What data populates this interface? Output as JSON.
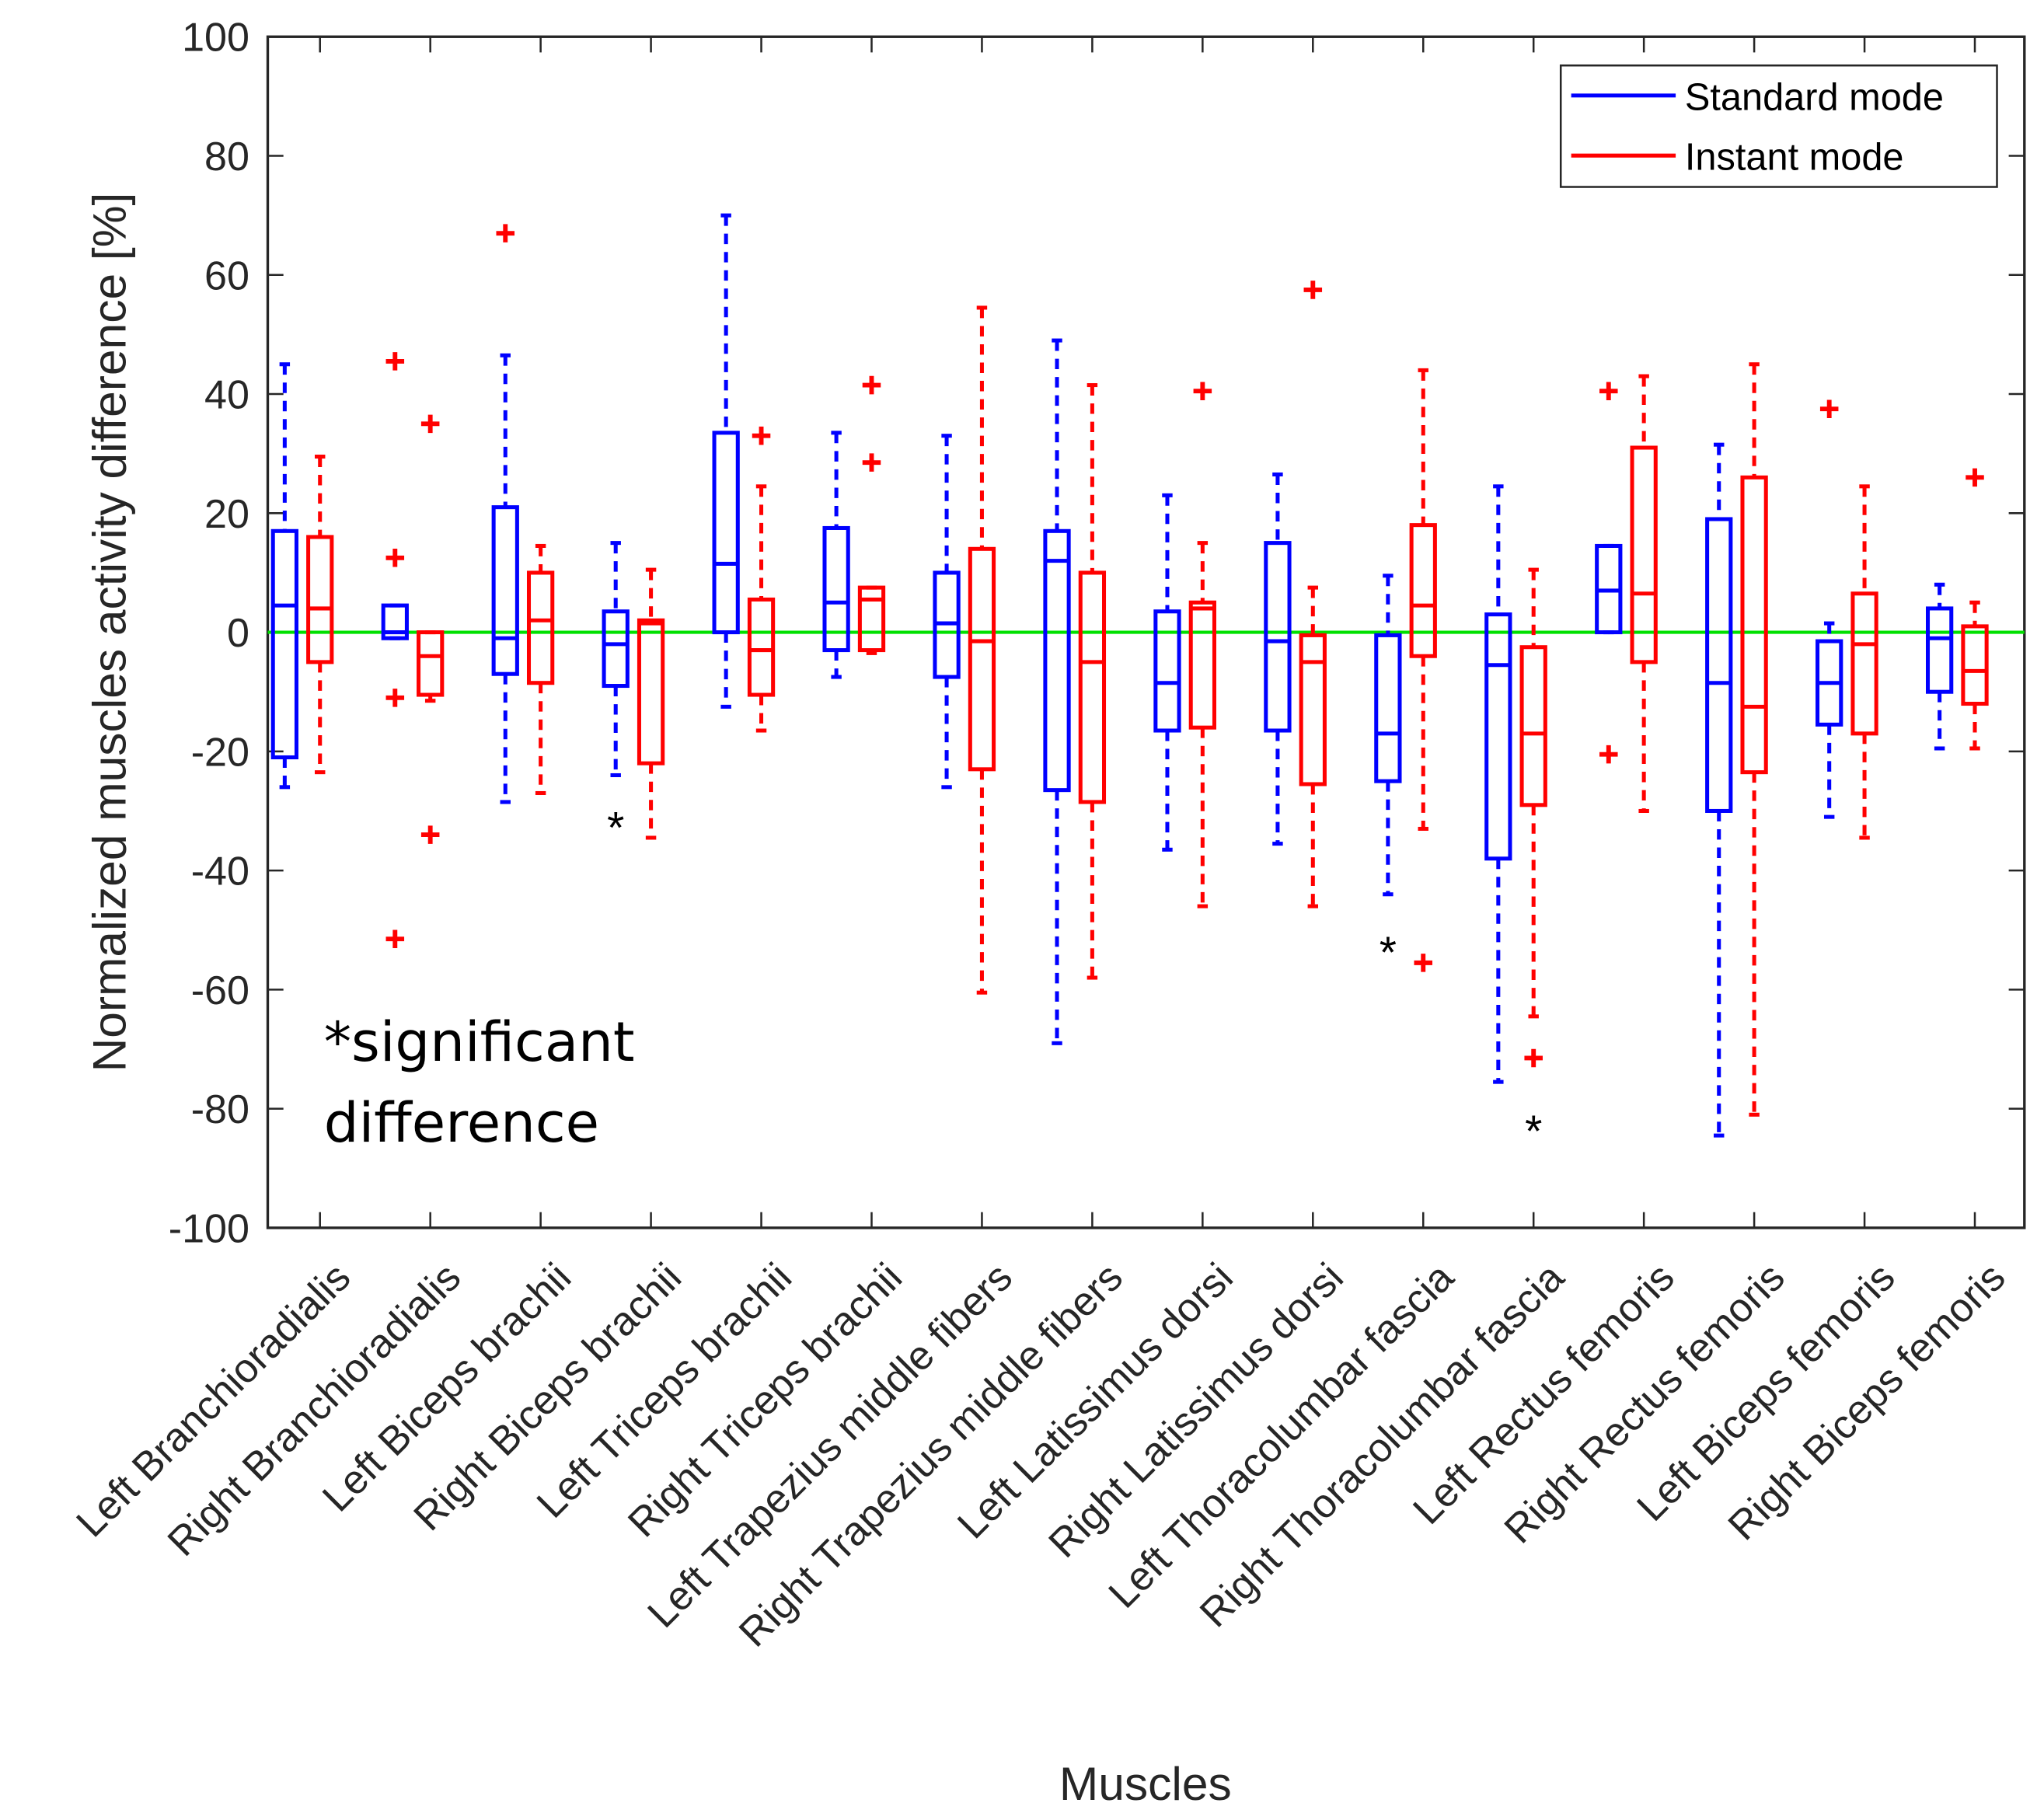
{
  "chart_data": {
    "type": "boxplot",
    "title": "",
    "xlabel": "Muscles",
    "ylabel": "Normalized muscles activity difference [%]",
    "ylim": [
      -100,
      100
    ],
    "yticks": [
      -100,
      -80,
      -60,
      -40,
      -20,
      0,
      20,
      40,
      60,
      80,
      100
    ],
    "reference_line": {
      "y": 0,
      "color": "#00e000"
    },
    "legend": {
      "placement": "top-right",
      "entries": [
        {
          "name": "Standard mode",
          "color": "#0000ff"
        },
        {
          "name": "Instant mode",
          "color": "#ff0000"
        }
      ]
    },
    "outlier_color": "#ff0000",
    "annotation": [
      "*significant",
      "difference"
    ],
    "significance_mark": "*",
    "categories": [
      "Left Branchioradialis",
      "Right Branchioradialis",
      "Left Biceps brachii",
      "Right Biceps brachii",
      "Left Triceps brachii",
      "Right Triceps brachii",
      "Left Trapezius middle fibers",
      "Right Trapezius middle fibers",
      "Left Latissimus dorsi",
      "Right Latissimus dorsi",
      "Left Thoracolumbar fascia",
      "Right Thoracolumbar fascia",
      "Left Rectus femoris",
      "Right Rectus femoris",
      "Left Biceps femoris",
      "Right Biceps femoris"
    ],
    "series": [
      {
        "name": "Standard mode",
        "boxes": [
          {
            "min": -26,
            "q1": -21,
            "median": 4.5,
            "q3": 17,
            "max": 45,
            "outliers": []
          },
          {
            "min": -1,
            "q1": -1,
            "median": 0,
            "q3": 4.5,
            "max": 4.5,
            "outliers": [
              45.5,
              12.5,
              -11,
              -51.5
            ]
          },
          {
            "min": -28.5,
            "q1": -7,
            "median": -1,
            "q3": 21,
            "max": 46.5,
            "outliers": [
              67
            ]
          },
          {
            "min": -24,
            "q1": -9,
            "median": -2,
            "q3": 3.5,
            "max": 15,
            "outliers": [],
            "significant": -30.5
          },
          {
            "min": -12.5,
            "q1": 0,
            "median": 11.5,
            "q3": 33.5,
            "max": 70,
            "outliers": []
          },
          {
            "min": -7.5,
            "q1": -3,
            "median": 5,
            "q3": 17.5,
            "max": 33.5,
            "outliers": []
          },
          {
            "min": -26,
            "q1": -7.5,
            "median": 1.5,
            "q3": 10,
            "max": 33,
            "outliers": []
          },
          {
            "min": -69,
            "q1": -26.5,
            "median": 12,
            "q3": 17,
            "max": 49,
            "outliers": []
          },
          {
            "min": -36.5,
            "q1": -16.5,
            "median": -8.5,
            "q3": 3.5,
            "max": 23,
            "outliers": []
          },
          {
            "min": -35.5,
            "q1": -16.5,
            "median": -1.5,
            "q3": 15,
            "max": 26.5,
            "outliers": []
          },
          {
            "min": -44,
            "q1": -25,
            "median": -17,
            "q3": -0.5,
            "max": 9.5,
            "outliers": [],
            "significant": -51.5
          },
          {
            "min": -75.5,
            "q1": -38,
            "median": -5.5,
            "q3": 3,
            "max": 24.5,
            "outliers": []
          },
          {
            "min": 0,
            "q1": 0,
            "median": 7,
            "q3": 14.5,
            "max": 14.5,
            "outliers": [
              40.5,
              -20.5
            ]
          },
          {
            "min": -84.5,
            "q1": -30,
            "median": -8.5,
            "q3": 19,
            "max": 31.5,
            "outliers": []
          },
          {
            "min": -31,
            "q1": -15.5,
            "median": -8.5,
            "q3": -1.5,
            "max": 1.5,
            "outliers": [
              37.5
            ]
          },
          {
            "min": -19.5,
            "q1": -10,
            "median": -1,
            "q3": 4,
            "max": 8,
            "outliers": []
          }
        ]
      },
      {
        "name": "Instant mode",
        "boxes": [
          {
            "min": -23.5,
            "q1": -5,
            "median": 4,
            "q3": 16,
            "max": 29.5,
            "outliers": []
          },
          {
            "min": -11.5,
            "q1": -10.5,
            "median": -4,
            "q3": 0,
            "max": 0,
            "outliers": [
              35,
              -34
            ]
          },
          {
            "min": -27,
            "q1": -8.5,
            "median": 2,
            "q3": 10,
            "max": 14.5,
            "outliers": []
          },
          {
            "min": -34.5,
            "q1": -22,
            "median": 1.5,
            "q3": 2,
            "max": 10.5,
            "outliers": []
          },
          {
            "min": -16.5,
            "q1": -10.5,
            "median": -3,
            "q3": 5.5,
            "max": 24.5,
            "outliers": [
              33
            ]
          },
          {
            "min": -3.5,
            "q1": -3,
            "median": 5.5,
            "q3": 7.5,
            "max": 7.5,
            "outliers": [
              41.5,
              28.5
            ]
          },
          {
            "min": -60.5,
            "q1": -23,
            "median": -1.5,
            "q3": 14,
            "max": 54.5,
            "outliers": []
          },
          {
            "min": -58,
            "q1": -28.5,
            "median": -5,
            "q3": 10,
            "max": 41.5,
            "outliers": []
          },
          {
            "min": -46,
            "q1": -16,
            "median": 4,
            "q3": 5,
            "max": 15,
            "outliers": [
              40.5
            ]
          },
          {
            "min": -46,
            "q1": -25.5,
            "median": -5,
            "q3": -0.5,
            "max": 7.5,
            "outliers": [
              57.5
            ]
          },
          {
            "min": -33,
            "q1": -4,
            "median": 4.5,
            "q3": 18,
            "max": 44,
            "outliers": [
              -55.5
            ]
          },
          {
            "min": -64.5,
            "q1": -29,
            "median": -17,
            "q3": -2.5,
            "max": 10.5,
            "outliers": [
              -71.5
            ],
            "significant": -81.5
          },
          {
            "min": -30,
            "q1": -5,
            "median": 6.5,
            "q3": 31,
            "max": 43,
            "outliers": []
          },
          {
            "min": -81,
            "q1": -23.5,
            "median": -12.5,
            "q3": 26,
            "max": 45,
            "outliers": []
          },
          {
            "min": -34.5,
            "q1": -17,
            "median": -2,
            "q3": 6.5,
            "max": 24.5,
            "outliers": []
          },
          {
            "min": -19.5,
            "q1": -12,
            "median": -6.5,
            "q3": 1,
            "max": 5,
            "outliers": [
              26
            ]
          }
        ]
      }
    ]
  }
}
